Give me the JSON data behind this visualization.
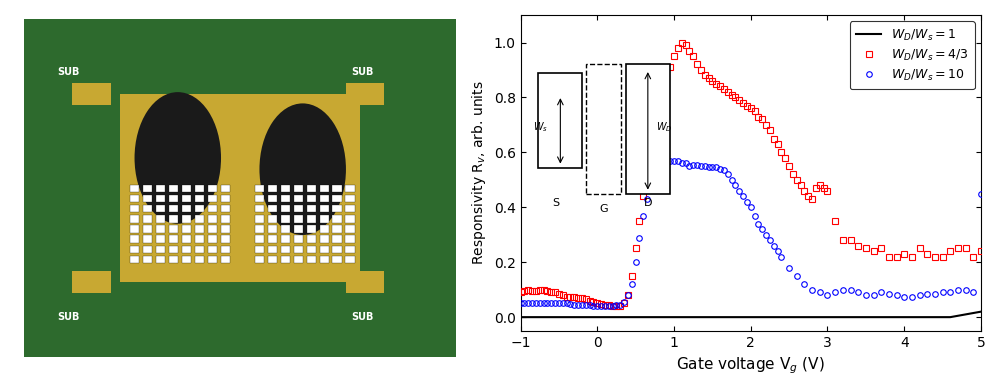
{
  "photo_path": null,
  "ylabel": "Responsivity R$_v$, arb. units",
  "xlabel": "Gate voltage V$_g$ (V)",
  "xlim": [
    -1,
    5
  ],
  "ylim": [
    -0.05,
    1.1
  ],
  "yticks": [
    0.0,
    0.2,
    0.4,
    0.6,
    0.8,
    1.0
  ],
  "xticks": [
    -1,
    0,
    1,
    2,
    3,
    4,
    5
  ],
  "legend_labels": [
    "$W_D / W_s = 1$",
    "$W_D / W_s = 4/3$",
    "$W_D / W_s = 10$"
  ],
  "black_line": {
    "x": [
      -1.0,
      -0.8,
      -0.6,
      -0.4,
      -0.2,
      0.0,
      0.2,
      0.4,
      0.6,
      0.8,
      1.0,
      1.2,
      1.4,
      1.6,
      1.8,
      2.0,
      2.2,
      2.4,
      2.6,
      2.8,
      3.0,
      3.2,
      3.4,
      3.6,
      3.8,
      4.0,
      4.2,
      4.4,
      4.6,
      4.8,
      5.0
    ],
    "y": [
      0.0,
      0.0,
      0.0,
      0.0,
      0.0,
      0.0,
      0.0,
      0.0,
      0.0,
      0.0,
      0.0,
      0.0,
      0.0,
      0.0,
      0.0,
      0.0,
      0.0,
      0.0,
      0.0,
      0.0,
      0.0,
      0.0,
      0.0,
      0.0,
      0.0,
      0.0,
      0.0,
      0.0,
      0.0,
      0.01,
      0.02
    ]
  },
  "red_squares": {
    "x": [
      -1.0,
      -0.95,
      -0.9,
      -0.85,
      -0.8,
      -0.75,
      -0.7,
      -0.65,
      -0.6,
      -0.55,
      -0.5,
      -0.45,
      -0.4,
      -0.35,
      -0.3,
      -0.25,
      -0.2,
      -0.15,
      -0.1,
      -0.05,
      0.0,
      0.05,
      0.1,
      0.15,
      0.2,
      0.25,
      0.3,
      0.35,
      0.4,
      0.45,
      0.5,
      0.55,
      0.6,
      0.65,
      0.7,
      0.75,
      0.8,
      0.85,
      0.9,
      0.95,
      1.0,
      1.05,
      1.1,
      1.15,
      1.2,
      1.25,
      1.3,
      1.35,
      1.4,
      1.45,
      1.5,
      1.55,
      1.6,
      1.65,
      1.7,
      1.75,
      1.8,
      1.85,
      1.9,
      1.95,
      2.0,
      2.05,
      2.1,
      2.15,
      2.2,
      2.25,
      2.3,
      2.35,
      2.4,
      2.45,
      2.5,
      2.55,
      2.6,
      2.65,
      2.7,
      2.75,
      2.8,
      2.85,
      2.9,
      2.95,
      3.0,
      3.1,
      3.2,
      3.3,
      3.4,
      3.5,
      3.6,
      3.7,
      3.8,
      3.9,
      4.0,
      4.1,
      4.2,
      4.3,
      4.4,
      4.5,
      4.6,
      4.7,
      4.8,
      4.9,
      5.0
    ],
    "y": [
      0.09,
      0.095,
      0.1,
      0.095,
      0.095,
      0.1,
      0.1,
      0.095,
      0.09,
      0.09,
      0.085,
      0.08,
      0.075,
      0.075,
      0.075,
      0.07,
      0.07,
      0.065,
      0.06,
      0.055,
      0.05,
      0.048,
      0.045,
      0.043,
      0.04,
      0.04,
      0.042,
      0.05,
      0.08,
      0.15,
      0.25,
      0.35,
      0.44,
      0.55,
      0.63,
      0.71,
      0.78,
      0.83,
      0.87,
      0.91,
      0.95,
      0.98,
      1.0,
      0.99,
      0.97,
      0.95,
      0.92,
      0.9,
      0.88,
      0.87,
      0.86,
      0.85,
      0.84,
      0.83,
      0.82,
      0.81,
      0.8,
      0.79,
      0.78,
      0.77,
      0.76,
      0.75,
      0.73,
      0.72,
      0.7,
      0.68,
      0.65,
      0.63,
      0.6,
      0.58,
      0.55,
      0.52,
      0.5,
      0.48,
      0.46,
      0.44,
      0.43,
      0.47,
      0.48,
      0.47,
      0.46,
      0.35,
      0.28,
      0.28,
      0.26,
      0.25,
      0.24,
      0.25,
      0.22,
      0.22,
      0.23,
      0.22,
      0.25,
      0.23,
      0.22,
      0.22,
      0.24,
      0.25,
      0.25,
      0.22,
      0.24
    ]
  },
  "blue_circles": {
    "x": [
      -1.0,
      -0.95,
      -0.9,
      -0.85,
      -0.8,
      -0.75,
      -0.7,
      -0.65,
      -0.6,
      -0.55,
      -0.5,
      -0.45,
      -0.4,
      -0.35,
      -0.3,
      -0.25,
      -0.2,
      -0.15,
      -0.1,
      -0.05,
      0.0,
      0.05,
      0.1,
      0.15,
      0.2,
      0.25,
      0.3,
      0.35,
      0.4,
      0.45,
      0.5,
      0.55,
      0.6,
      0.65,
      0.7,
      0.75,
      0.8,
      0.85,
      0.9,
      0.95,
      1.0,
      1.05,
      1.1,
      1.15,
      1.2,
      1.25,
      1.3,
      1.35,
      1.4,
      1.45,
      1.5,
      1.55,
      1.6,
      1.65,
      1.7,
      1.75,
      1.8,
      1.85,
      1.9,
      1.95,
      2.0,
      2.05,
      2.1,
      2.15,
      2.2,
      2.25,
      2.3,
      2.35,
      2.4,
      2.5,
      2.6,
      2.7,
      2.8,
      2.9,
      3.0,
      3.1,
      3.2,
      3.3,
      3.4,
      3.5,
      3.6,
      3.7,
      3.8,
      3.9,
      4.0,
      4.1,
      4.2,
      4.3,
      4.4,
      4.5,
      4.6,
      4.7,
      4.8,
      4.9,
      5.0
    ],
    "y": [
      0.05,
      0.05,
      0.05,
      0.05,
      0.05,
      0.05,
      0.05,
      0.05,
      0.05,
      0.05,
      0.05,
      0.05,
      0.05,
      0.048,
      0.045,
      0.045,
      0.045,
      0.045,
      0.043,
      0.04,
      0.04,
      0.04,
      0.04,
      0.04,
      0.042,
      0.043,
      0.045,
      0.055,
      0.08,
      0.12,
      0.2,
      0.29,
      0.37,
      0.43,
      0.48,
      0.52,
      0.54,
      0.56,
      0.57,
      0.57,
      0.57,
      0.57,
      0.56,
      0.56,
      0.55,
      0.555,
      0.555,
      0.55,
      0.55,
      0.545,
      0.545,
      0.545,
      0.54,
      0.535,
      0.52,
      0.5,
      0.48,
      0.46,
      0.44,
      0.42,
      0.4,
      0.37,
      0.34,
      0.32,
      0.3,
      0.28,
      0.26,
      0.24,
      0.22,
      0.18,
      0.15,
      0.12,
      0.1,
      0.09,
      0.08,
      0.09,
      0.1,
      0.1,
      0.09,
      0.08,
      0.08,
      0.09,
      0.085,
      0.08,
      0.075,
      0.075,
      0.08,
      0.085,
      0.085,
      0.09,
      0.09,
      0.1,
      0.1,
      0.09,
      0.45
    ]
  },
  "inset_bg": "#ffffff"
}
